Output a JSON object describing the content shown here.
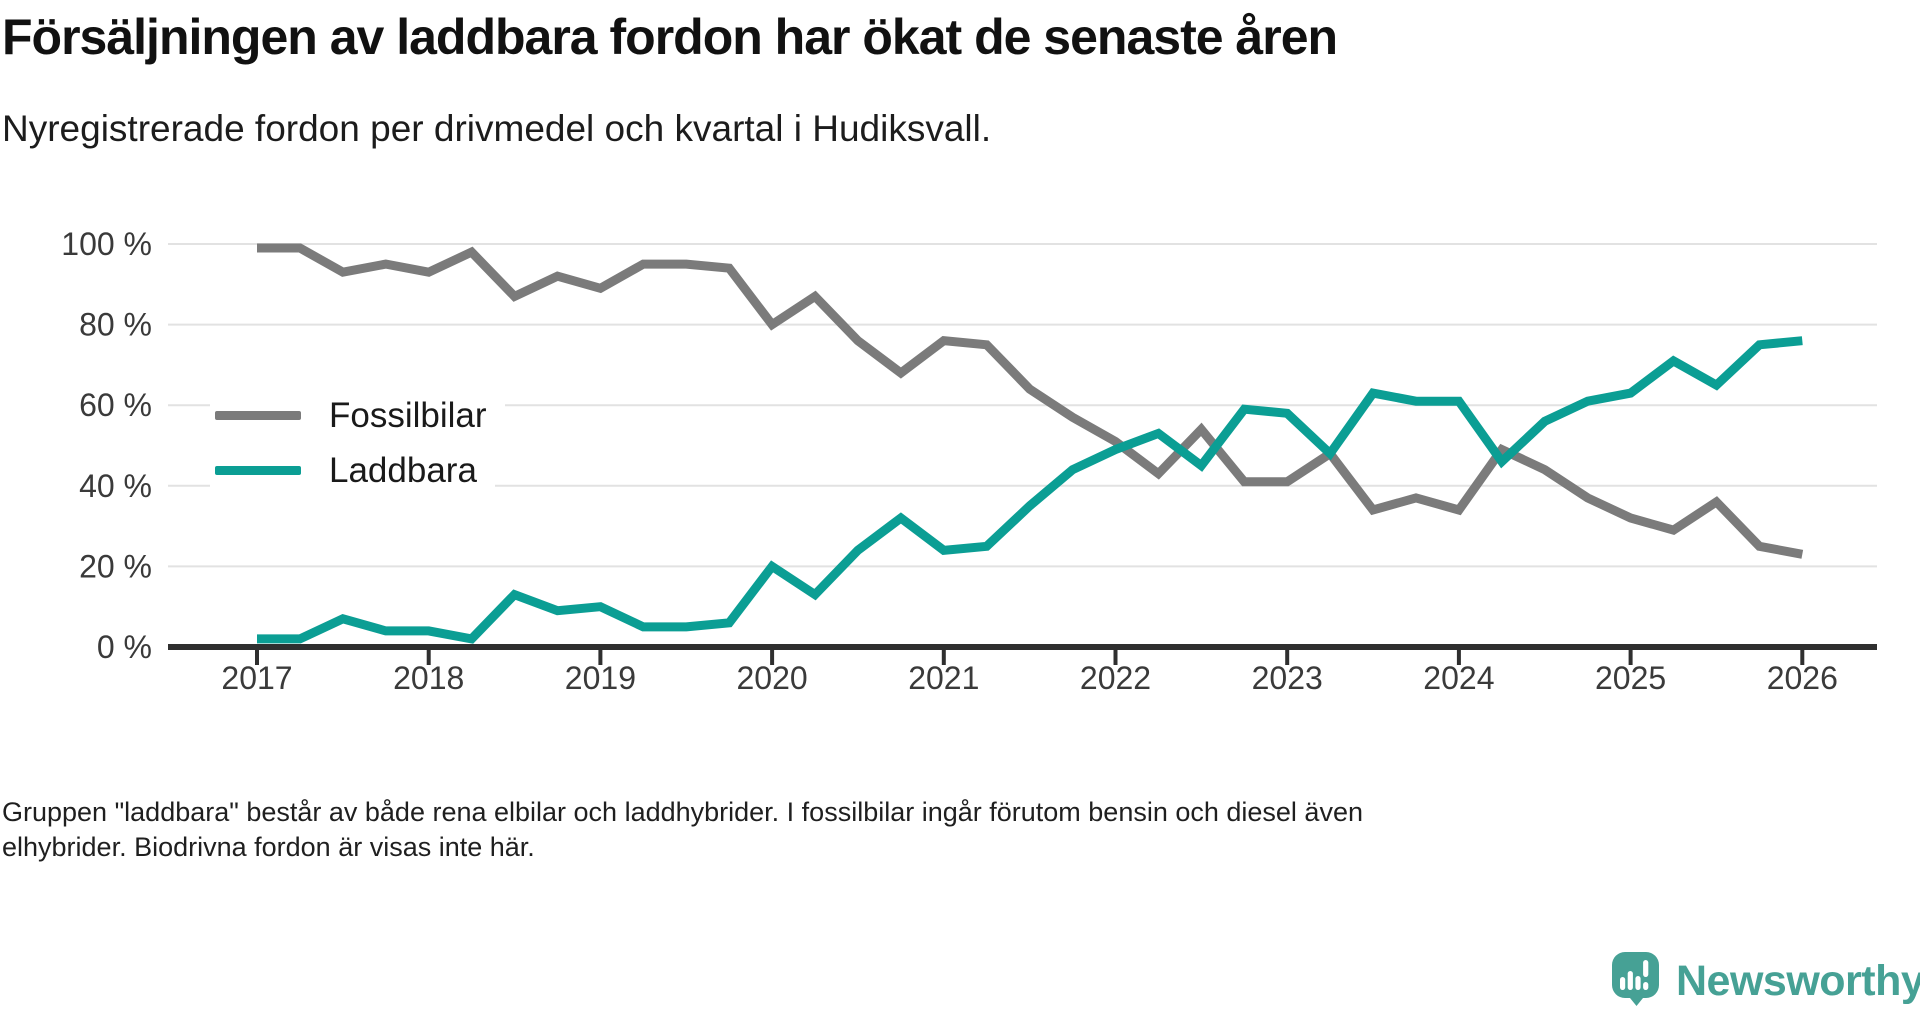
{
  "header": {
    "title": "Försäljningen av laddbara fordon har ökat de senaste åren",
    "subtitle": "Nyregistrerade fordon per drivmedel och kvartal i Hudiksvall."
  },
  "chart_data": {
    "type": "line",
    "title": "Försäljningen av laddbara fordon har ökat de senaste åren",
    "subtitle": "Nyregistrerade fordon per drivmedel och kvartal i Hudiksvall.",
    "unit": "%",
    "x": [
      2017.0,
      2017.25,
      2017.5,
      2017.75,
      2018.0,
      2018.25,
      2018.5,
      2018.75,
      2019.0,
      2019.25,
      2019.5,
      2019.75,
      2020.0,
      2020.25,
      2020.5,
      2020.75,
      2021.0,
      2021.25,
      2021.5,
      2021.75,
      2022.0,
      2022.25,
      2022.5,
      2022.75,
      2023.0,
      2023.25,
      2023.5,
      2023.75,
      2024.0,
      2024.25,
      2024.5,
      2024.75,
      2025.0,
      2025.25,
      2025.5,
      2025.75,
      2026.0
    ],
    "series": [
      {
        "name": "Fossilbilar",
        "color": "#7b7b7b",
        "values": [
          99,
          99,
          93,
          95,
          93,
          98,
          87,
          92,
          89,
          95,
          95,
          94,
          80,
          87,
          76,
          68,
          76,
          75,
          64,
          57,
          51,
          43,
          54,
          41,
          41,
          48,
          34,
          37,
          34,
          49,
          44,
          37,
          32,
          29,
          36,
          25,
          23
        ]
      },
      {
        "name": "Laddbara",
        "color": "#0b9e94",
        "values": [
          2,
          2,
          7,
          4,
          4,
          2,
          13,
          9,
          10,
          5,
          5,
          6,
          20,
          13,
          24,
          32,
          24,
          25,
          35,
          44,
          49,
          53,
          45,
          59,
          58,
          48,
          63,
          61,
          61,
          46,
          56,
          61,
          63,
          71,
          65,
          75,
          76
        ]
      }
    ],
    "xlabel": "",
    "ylabel": "",
    "ylim": [
      0,
      100
    ],
    "y_ticks": [
      0,
      20,
      40,
      60,
      80,
      100
    ],
    "y_tick_labels": [
      "0 %",
      "20 %",
      "40 %",
      "60 %",
      "80 %",
      "100 %"
    ],
    "x_ticks": [
      2017,
      2018,
      2019,
      2020,
      2021,
      2022,
      2023,
      2024,
      2025,
      2026
    ],
    "x_tick_labels": [
      "2017",
      "2018",
      "2019",
      "2020",
      "2021",
      "2022",
      "2023",
      "2024",
      "2025",
      "2026"
    ],
    "grid": "horizontal",
    "legend_position": "inside-upper-left"
  },
  "legend": {
    "items": [
      {
        "label": "Fossilbilar",
        "color": "#7b7b7b"
      },
      {
        "label": "Laddbara",
        "color": "#0b9e94"
      }
    ]
  },
  "footnote": {
    "line1": "Gruppen \"laddbara\" består av både rena elbilar och laddhybrider. I fossilbilar ingår förutom bensin och diesel även",
    "line2": "elhybrider. Biodrivna fordon är visas inte här."
  },
  "branding": {
    "logo_text": "Newsworthy",
    "logo_color": "#46a195"
  },
  "colors": {
    "axis": "#2f2f2f",
    "gridline": "#e2e2e2",
    "tick_label": "#3a3a3a"
  }
}
